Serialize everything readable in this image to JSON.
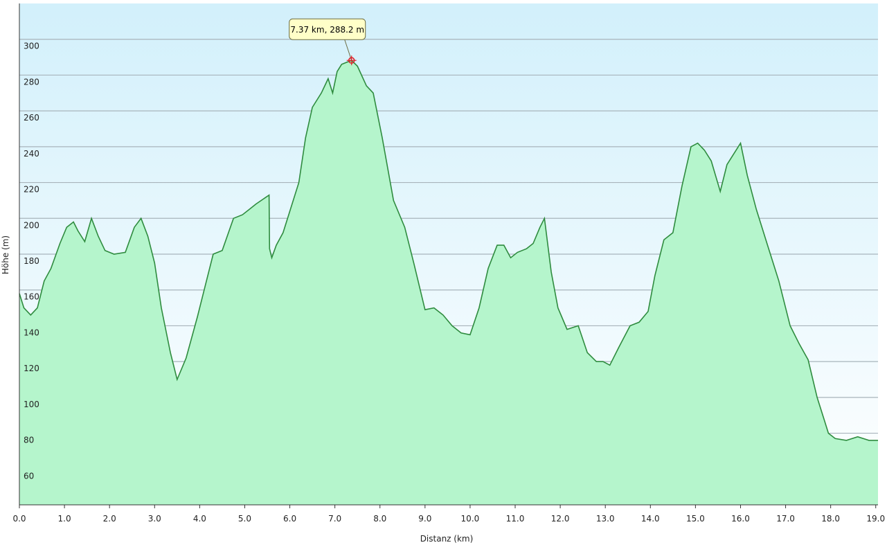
{
  "chart_data": {
    "type": "area",
    "title": "",
    "xlabel": "Distanz  (km)",
    "ylabel": "Höhe (m)",
    "xlim": [
      0,
      19.05
    ],
    "ylim": [
      40,
      320
    ],
    "x_ticks": [
      "0.0",
      "1.0",
      "2.0",
      "3.0",
      "4.0",
      "5.0",
      "6.0",
      "7.0",
      "8.0",
      "9.0",
      "10.0",
      "11.0",
      "12.0",
      "13.0",
      "14.0",
      "15.0",
      "16.0",
      "17.0",
      "18.0",
      "19.0"
    ],
    "y_ticks": [
      "60",
      "80",
      "100",
      "120",
      "140",
      "160",
      "180",
      "200",
      "220",
      "240",
      "260",
      "280",
      "300"
    ],
    "grid": "horizontal",
    "colors": {
      "fill": "#b5f5cc",
      "line": "#2e8b3e",
      "bg_top": "#d2f0fb",
      "bg_bottom": "#ffffff",
      "grid": "#a8b4bb",
      "marker": "#e0202a",
      "tooltip_bg": "#ffffc8"
    },
    "series": [
      {
        "x": [
          0.0,
          0.1,
          0.25,
          0.4,
          0.55,
          0.7,
          0.9,
          1.05,
          1.2,
          1.3,
          1.45,
          1.6,
          1.75,
          1.9,
          2.1,
          2.35,
          2.55,
          2.7,
          2.85,
          3.0,
          3.15,
          3.35,
          3.5,
          3.7,
          3.95,
          4.15,
          4.3,
          4.5,
          4.75,
          4.95,
          5.1,
          5.25,
          5.54,
          5.55,
          5.6,
          5.7,
          5.85,
          6.0,
          6.2,
          6.35,
          6.5,
          6.7,
          6.85,
          6.95,
          7.05,
          7.15,
          7.25,
          7.37,
          7.5,
          7.7,
          7.85,
          8.05,
          8.3,
          8.55,
          8.75,
          9.0,
          9.2,
          9.4,
          9.6,
          9.8,
          10.0,
          10.2,
          10.4,
          10.6,
          10.75,
          10.9,
          11.05,
          11.25,
          11.4,
          11.55,
          11.65,
          11.8,
          11.95,
          12.15,
          12.4,
          12.6,
          12.8,
          12.95,
          13.1,
          13.3,
          13.55,
          13.75,
          13.95,
          14.1,
          14.3,
          14.5,
          14.7,
          14.9,
          15.05,
          15.2,
          15.35,
          15.55,
          15.7,
          15.85,
          16.0,
          16.15,
          16.35,
          16.6,
          16.85,
          17.1,
          17.3,
          17.5,
          17.7,
          17.85,
          17.95,
          18.1,
          18.35,
          18.6,
          18.85,
          19.05
        ],
        "y": [
          158,
          150,
          146,
          150,
          165,
          172,
          186,
          195,
          198,
          193,
          187,
          200,
          190,
          182,
          180,
          181,
          195,
          200,
          190,
          175,
          150,
          125,
          110,
          122,
          145,
          165,
          180,
          182,
          200,
          202,
          205,
          208,
          213,
          183,
          178,
          185,
          192,
          204,
          220,
          245,
          262,
          270,
          278,
          270,
          282,
          286,
          287,
          288.2,
          285,
          274,
          270,
          245,
          210,
          195,
          175,
          149,
          150,
          146,
          140,
          136,
          135,
          150,
          172,
          185,
          185,
          178,
          181,
          183,
          186,
          195,
          200,
          170,
          150,
          138,
          140,
          125,
          120,
          120,
          118,
          128,
          140,
          142,
          148,
          168,
          188,
          192,
          218,
          240,
          242,
          238,
          232,
          215,
          230,
          236,
          242,
          224,
          205,
          185,
          165,
          140,
          130,
          121,
          100,
          88,
          80,
          77,
          76,
          78,
          76,
          76
        ]
      }
    ],
    "annotation": {
      "x": 7.37,
      "y": 288.2,
      "text": "7.37 km, 288.2 m"
    }
  }
}
